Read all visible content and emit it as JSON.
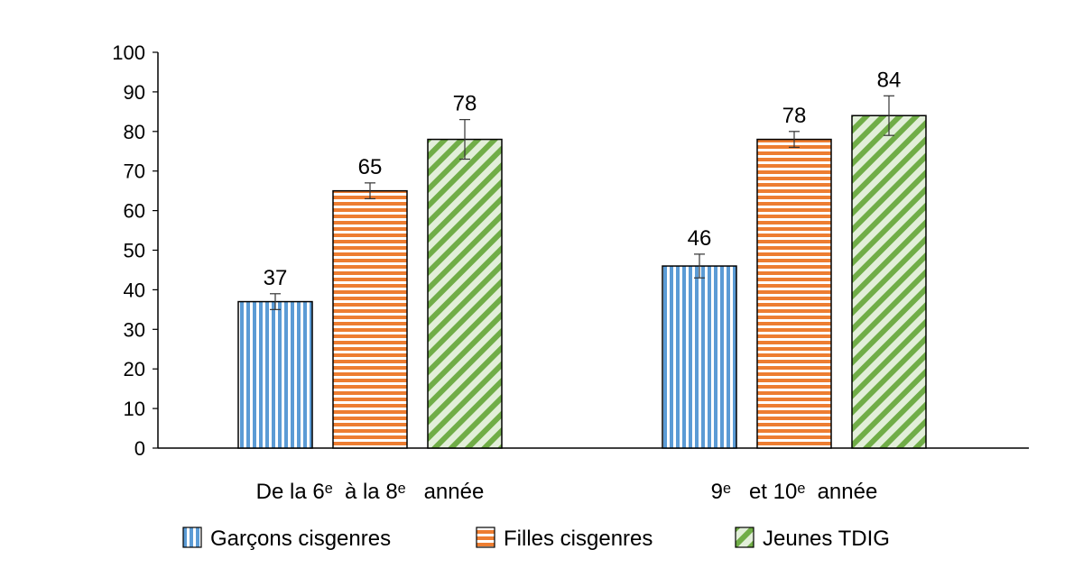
{
  "chart_data": {
    "type": "bar",
    "categories": [
      "De la 6ᵉ  à la 8ᵉ   année",
      "9ᵉ   et 10ᵉ  année"
    ],
    "series": [
      {
        "name": "Garçons cisgenres",
        "values": [
          37,
          46
        ],
        "error": [
          2,
          3
        ],
        "color": "#5b9bd5",
        "pattern": "vertical-stripes"
      },
      {
        "name": "Filles cisgenres",
        "values": [
          65,
          78
        ],
        "error": [
          2,
          2
        ],
        "color": "#ed7d31",
        "pattern": "horizontal-stripes"
      },
      {
        "name": "Jeunes TDIG",
        "values": [
          78,
          84
        ],
        "error": [
          5,
          5
        ],
        "color": "#70ad47",
        "pattern": "diagonal-stripes"
      }
    ],
    "yticks": [
      0,
      10,
      20,
      30,
      40,
      50,
      60,
      70,
      80,
      90,
      100
    ],
    "ylim": [
      0,
      100
    ],
    "grid": false,
    "legend_position": "bottom",
    "data_labels": true
  }
}
